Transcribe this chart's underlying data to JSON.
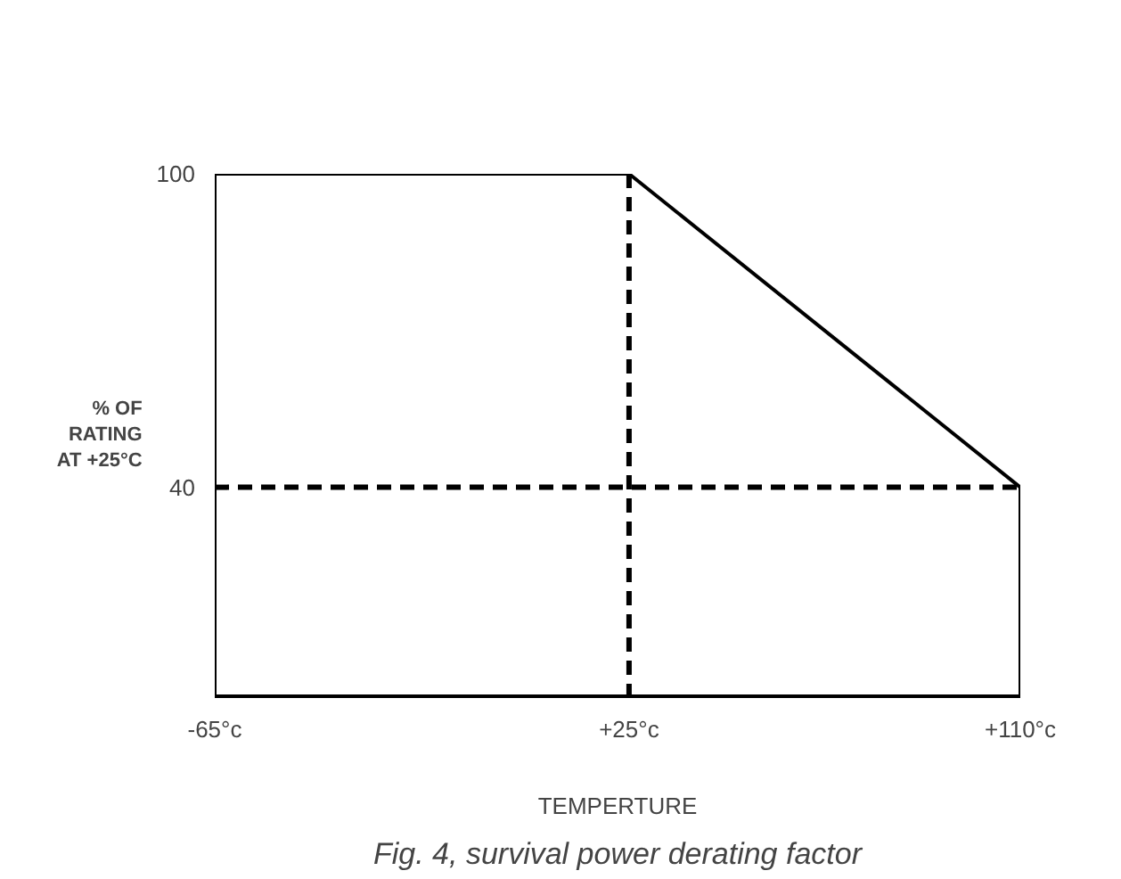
{
  "chart_data": {
    "type": "line",
    "xlabel": "TEMPERTURE",
    "ylabel": "% OF RATING AT +25°C",
    "x": [
      -65,
      -65,
      25,
      110,
      110
    ],
    "series": [
      {
        "color": "#000000",
        "values": [
          0,
          100,
          100,
          40,
          0
        ]
      }
    ],
    "xlim": [
      -65,
      110
    ],
    "ylim": [
      0,
      100
    ],
    "xticks": [
      {
        "value": -65,
        "label": "-65°c"
      },
      {
        "value": 25,
        "label": "+25°c"
      },
      {
        "value": 110,
        "label": "+110°c"
      }
    ],
    "yticks": [
      40,
      100
    ],
    "ref_lines": [
      {
        "axis": "y",
        "value": 40,
        "color": "#000000",
        "line_style": "dashed"
      },
      {
        "axis": "x",
        "value": 25,
        "color": "#000000",
        "line_style": "dashed"
      }
    ],
    "line_style": "solid",
    "marker": "none",
    "annotations": [
      "Fig. 4, survival power derating factor"
    ]
  }
}
